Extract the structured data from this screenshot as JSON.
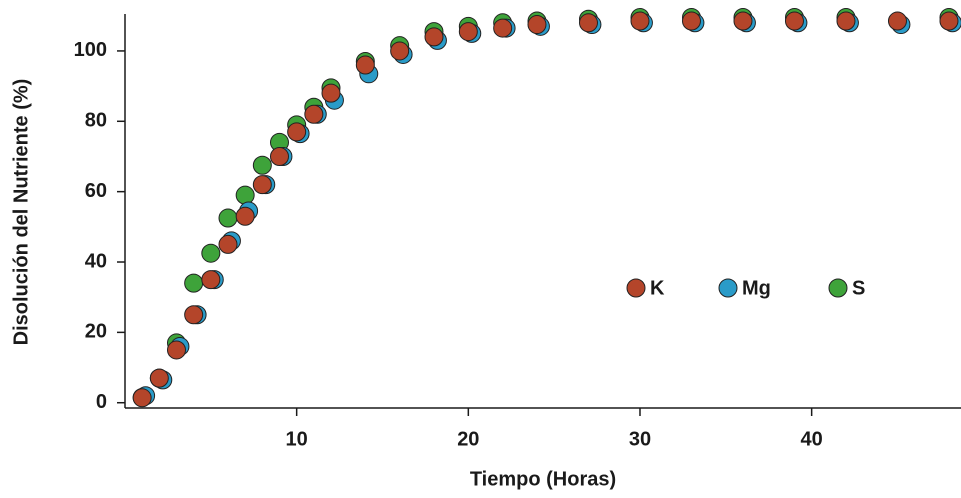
{
  "chart_data": {
    "type": "scatter",
    "x_label": "Tiempo (Horas)",
    "y_label": "Disolución del Nutriente (%)",
    "xlim": [
      0,
      48.7
    ],
    "ylim": [
      -1.5,
      110.5
    ],
    "xticks": [
      10,
      20,
      30,
      40
    ],
    "yticks": [
      0,
      20,
      40,
      60,
      80,
      100
    ],
    "series": [
      {
        "name": "S",
        "color": "#3ea33a",
        "x": [
          1,
          2,
          3,
          4,
          5,
          6,
          7,
          8,
          9,
          10,
          11,
          12,
          14,
          16,
          18,
          20,
          22,
          24,
          27,
          30,
          33,
          36,
          39,
          42,
          48
        ],
        "values": [
          1.5,
          7,
          17,
          34,
          42.5,
          52.5,
          59,
          67.5,
          74,
          79,
          84,
          89.5,
          97,
          101.5,
          105.5,
          107,
          108,
          108.5,
          109,
          109.5,
          109.5,
          109.5,
          109.5,
          109.5,
          109.5
        ]
      },
      {
        "name": "Mg",
        "color": "#2a9bc8",
        "x": [
          1.2,
          2.2,
          3.2,
          4.2,
          5.2,
          6.2,
          7.2,
          8.2,
          9.2,
          10.2,
          11.2,
          12.2,
          14.2,
          16.2,
          18.2,
          20.2,
          22.2,
          24.2,
          27.2,
          30.2,
          33.2,
          36.2,
          39.2,
          42.2,
          45.2,
          48.2
        ],
        "values": [
          2,
          6.5,
          16,
          25,
          35,
          46,
          54.5,
          62,
          70,
          76.5,
          82,
          86,
          93.5,
          99,
          103,
          105,
          106.5,
          107,
          107.5,
          108,
          108,
          108,
          108,
          108,
          107.5,
          108
        ]
      },
      {
        "name": "K",
        "color": "#b4452a",
        "x": [
          1,
          2,
          3,
          4,
          5,
          6,
          7,
          8,
          9,
          10,
          11,
          12,
          14,
          16,
          18,
          20,
          22,
          24,
          27,
          30,
          33,
          36,
          39,
          42,
          45,
          48
        ],
        "values": [
          1.4,
          7,
          15,
          25,
          35,
          45,
          53,
          62,
          70,
          77,
          82,
          88,
          96,
          100,
          104,
          105.5,
          106.5,
          107.5,
          108,
          108.5,
          108.5,
          108.5,
          108.5,
          108.5,
          108.5,
          108.5
        ]
      }
    ]
  }
}
